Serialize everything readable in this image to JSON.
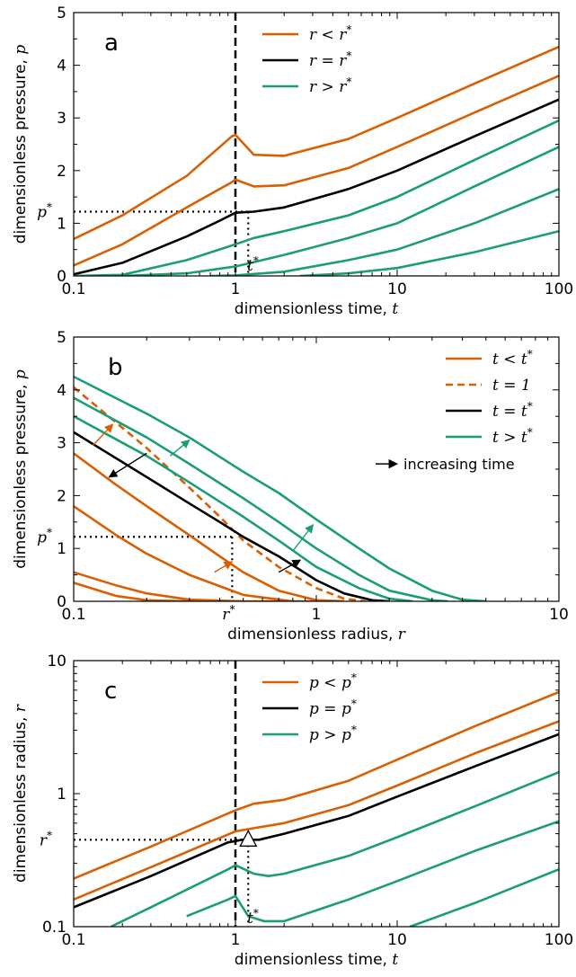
{
  "colors": {
    "orange": "#d95f02",
    "black": "#000000",
    "green": "#1b9e77"
  },
  "chart_data": [
    {
      "panel": "a",
      "type": "line",
      "xscale": "log",
      "xlim": [
        0.1,
        100
      ],
      "ylim": [
        0,
        5
      ],
      "xlabel": "dimensionless time, t",
      "ylabel": "dimensionless pressure, p",
      "xticks": [
        "0.1",
        "1",
        "10",
        "100"
      ],
      "yticks": [
        "0",
        "1",
        "2",
        "3",
        "4",
        "5"
      ],
      "ref_labels": {
        "xref": "t*",
        "yref": "p*"
      },
      "legend": [
        "r < r*",
        "r = r*",
        "r > r*"
      ],
      "legend_position": "top-center",
      "series": [
        {
          "name": "r < r*",
          "color": "orange",
          "x": [
            0.1,
            0.2,
            0.5,
            0.95,
            1.0,
            1.3,
            2,
            5,
            10,
            30,
            100
          ],
          "y": [
            0.7,
            1.15,
            1.9,
            2.65,
            2.68,
            2.3,
            2.28,
            2.6,
            3.0,
            3.65,
            4.35
          ]
        },
        {
          "name": "r < r*",
          "color": "orange",
          "x": [
            0.1,
            0.2,
            0.5,
            0.95,
            1.0,
            1.3,
            2,
            5,
            10,
            30,
            100
          ],
          "y": [
            0.2,
            0.6,
            1.3,
            1.78,
            1.83,
            1.7,
            1.72,
            2.05,
            2.45,
            3.1,
            3.8
          ]
        },
        {
          "name": "r = r*",
          "color": "black",
          "x": [
            0.1,
            0.2,
            0.5,
            0.8,
            1.0,
            1.3,
            2,
            5,
            10,
            30,
            100
          ],
          "y": [
            0.03,
            0.25,
            0.75,
            1.05,
            1.2,
            1.22,
            1.3,
            1.65,
            2.0,
            2.65,
            3.35
          ]
        },
        {
          "name": "r > r*",
          "color": "green",
          "x": [
            0.1,
            0.2,
            0.5,
            1.0,
            1.3,
            2,
            5,
            10,
            30,
            100
          ],
          "y": [
            0.0,
            0.02,
            0.3,
            0.6,
            0.72,
            0.85,
            1.15,
            1.5,
            2.2,
            2.95
          ]
        },
        {
          "name": "r > r*",
          "color": "green",
          "x": [
            0.2,
            0.5,
            1.0,
            2,
            5,
            10,
            30,
            100
          ],
          "y": [
            0.0,
            0.05,
            0.18,
            0.4,
            0.72,
            1.0,
            1.7,
            2.45
          ]
        },
        {
          "name": "r > r*",
          "color": "green",
          "x": [
            0.7,
            1.0,
            2,
            5,
            10,
            30,
            100
          ],
          "y": [
            0.0,
            0.01,
            0.08,
            0.3,
            0.5,
            1.0,
            1.65
          ]
        },
        {
          "name": "r > r*",
          "color": "green",
          "x": [
            2.5,
            5,
            10,
            30,
            100
          ],
          "y": [
            0.0,
            0.05,
            0.15,
            0.45,
            0.85
          ]
        }
      ],
      "ref_x": 1.0,
      "ref_y": 1.22,
      "ref_t_dot": 1.2
    },
    {
      "panel": "b",
      "type": "line",
      "xscale": "log",
      "xlim": [
        0.1,
        10
      ],
      "ylim": [
        0,
        5
      ],
      "xlabel": "dimensionless radius, r",
      "ylabel": "dimensionless pressure, p",
      "xticks": [
        "0.1",
        "1",
        "10"
      ],
      "yticks": [
        "0",
        "1",
        "2",
        "3",
        "4",
        "5"
      ],
      "ref_labels": {
        "xref": "r*",
        "yref": "p*"
      },
      "legend": [
        "t < t*",
        "t = 1",
        "t = t*",
        "t > t*"
      ],
      "legend_position": "top-right",
      "annotation": "increasing time",
      "series": [
        {
          "name": "t < t*",
          "color": "orange",
          "dash": false,
          "x": [
            0.1,
            0.15,
            0.2,
            0.3,
            0.5
          ],
          "y": [
            0.35,
            0.1,
            0.02,
            0.0,
            0.0
          ]
        },
        {
          "name": "t < t*",
          "color": "orange",
          "dash": false,
          "x": [
            0.1,
            0.15,
            0.2,
            0.3,
            0.5,
            0.7
          ],
          "y": [
            0.55,
            0.3,
            0.15,
            0.03,
            0.0,
            0.0
          ]
        },
        {
          "name": "t < t*",
          "color": "orange",
          "dash": false,
          "x": [
            0.1,
            0.15,
            0.2,
            0.3,
            0.5,
            0.8,
            1.0
          ],
          "y": [
            1.8,
            1.25,
            0.9,
            0.5,
            0.12,
            0.0,
            0.0
          ]
        },
        {
          "name": "t < t*",
          "color": "orange",
          "dash": false,
          "x": [
            0.1,
            0.15,
            0.2,
            0.3,
            0.4,
            0.5,
            0.7,
            1.0,
            1.3
          ],
          "y": [
            2.8,
            2.2,
            1.8,
            1.25,
            0.85,
            0.55,
            0.2,
            0.02,
            0.0
          ]
        },
        {
          "name": "t = 1",
          "color": "orange",
          "dash": true,
          "x": [
            0.1,
            0.2,
            0.3,
            0.4,
            0.5,
            0.7,
            1.0,
            1.3,
            1.6
          ],
          "y": [
            4.05,
            2.9,
            2.15,
            1.6,
            1.15,
            0.65,
            0.25,
            0.05,
            0.0
          ]
        },
        {
          "name": "t = t*",
          "color": "black",
          "dash": false,
          "x": [
            0.1,
            0.2,
            0.3,
            0.4,
            0.5,
            0.7,
            1.0,
            1.3,
            1.7,
            2.0
          ],
          "y": [
            3.2,
            2.35,
            1.85,
            1.5,
            1.22,
            0.85,
            0.4,
            0.15,
            0.02,
            0.0
          ]
        },
        {
          "name": "t > t*",
          "color": "green",
          "dash": false,
          "x": [
            0.1,
            0.2,
            0.3,
            0.5,
            0.7,
            1.0,
            1.5,
            2.0,
            2.5
          ],
          "y": [
            3.5,
            2.75,
            2.25,
            1.6,
            1.15,
            0.65,
            0.25,
            0.05,
            0.0
          ]
        },
        {
          "name": "t > t*",
          "color": "green",
          "dash": false,
          "x": [
            0.1,
            0.2,
            0.3,
            0.5,
            0.7,
            1.0,
            1.5,
            2.0,
            3.0,
            3.5
          ],
          "y": [
            3.85,
            3.1,
            2.6,
            1.95,
            1.5,
            1.0,
            0.5,
            0.2,
            0.02,
            0.0
          ]
        },
        {
          "name": "t > t*",
          "color": "green",
          "dash": false,
          "x": [
            0.1,
            0.2,
            0.3,
            0.5,
            0.7,
            1.0,
            1.5,
            2.0,
            3.0,
            4.0,
            5.0
          ],
          "y": [
            4.25,
            3.55,
            3.1,
            2.45,
            2.05,
            1.55,
            1.0,
            0.62,
            0.2,
            0.03,
            0.0
          ]
        }
      ],
      "ref_x": 0.45,
      "ref_y": 1.22
    },
    {
      "panel": "c",
      "type": "line",
      "xscale": "log",
      "yscale": "log",
      "xlim": [
        0.1,
        100
      ],
      "ylim": [
        0.1,
        10
      ],
      "xlabel": "dimensionless time, t",
      "ylabel": "dimensionless radius, r",
      "xticks": [
        "0.1",
        "1",
        "10",
        "100"
      ],
      "yticks": [
        "0.1",
        "1",
        "10"
      ],
      "ref_labels": {
        "xref": "t*",
        "yref": "r*"
      },
      "legend": [
        "p < p*",
        "p = p*",
        "p > p*"
      ],
      "legend_position": "top-center",
      "series": [
        {
          "name": "p < p*",
          "color": "orange",
          "x": [
            0.1,
            0.3,
            1.0,
            1.3,
            2,
            5,
            10,
            30,
            100
          ],
          "y": [
            0.23,
            0.4,
            0.75,
            0.84,
            0.9,
            1.25,
            1.8,
            3.2,
            5.8
          ]
        },
        {
          "name": "p < p*",
          "color": "orange",
          "x": [
            0.1,
            0.3,
            1.0,
            1.3,
            2,
            5,
            10,
            30,
            100
          ],
          "y": [
            0.16,
            0.28,
            0.52,
            0.55,
            0.6,
            0.82,
            1.15,
            2.0,
            3.5
          ]
        },
        {
          "name": "p = p*",
          "color": "black",
          "x": [
            0.1,
            0.3,
            0.9,
            1.1,
            1.4,
            2,
            5,
            10,
            30,
            100
          ],
          "y": [
            0.14,
            0.24,
            0.43,
            0.45,
            0.45,
            0.5,
            0.68,
            0.95,
            1.6,
            2.8
          ]
        },
        {
          "name": "p > p*",
          "color": "green",
          "x": [
            0.17,
            0.3,
            0.9,
            1.0,
            1.3,
            1.6,
            2,
            5,
            10,
            30,
            100
          ],
          "y": [
            0.1,
            0.14,
            0.27,
            0.29,
            0.25,
            0.24,
            0.25,
            0.34,
            0.47,
            0.8,
            1.45
          ]
        },
        {
          "name": "p > p*",
          "color": "green",
          "x": [
            0.5,
            0.9,
            1.0,
            1.2,
            1.5,
            2,
            5,
            10,
            30,
            100
          ],
          "y": [
            0.12,
            0.16,
            0.17,
            0.12,
            0.11,
            0.11,
            0.16,
            0.22,
            0.37,
            0.62
          ]
        },
        {
          "name": "p > p*",
          "color": "green",
          "x": [
            12,
            30,
            100
          ],
          "y": [
            0.1,
            0.15,
            0.27
          ]
        }
      ],
      "ref_x": 1.0,
      "ref_y": 0.45,
      "ref_t_dot": 1.2
    }
  ]
}
